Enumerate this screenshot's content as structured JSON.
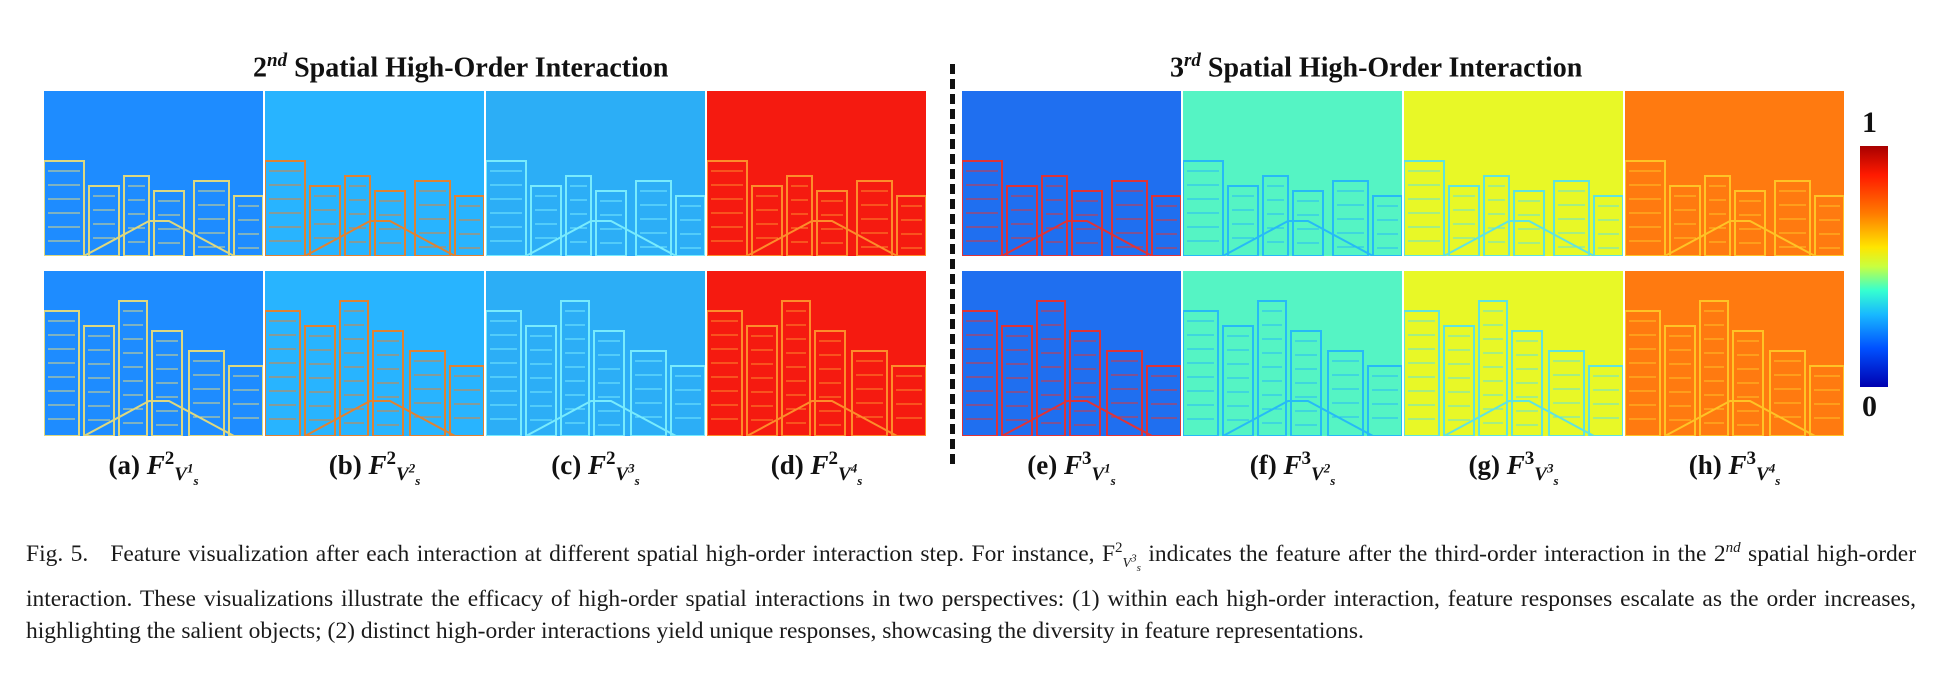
{
  "titles": {
    "left_order": "2",
    "left_sup": "nd",
    "left_text": "Spatial High-Order Interaction",
    "right_order": "3",
    "right_sup": "rd",
    "right_text": "Spatial High-Order Interaction"
  },
  "panels": [
    {
      "label": "(a)",
      "order": "2",
      "idx": "1",
      "tint": "#1e8cff",
      "accent": "#ffe66a"
    },
    {
      "label": "(b)",
      "order": "2",
      "idx": "2",
      "tint": "#28b4ff",
      "accent": "#ff7a10"
    },
    {
      "label": "(c)",
      "order": "2",
      "idx": "3",
      "tint": "#2caef6",
      "accent": "#86f6ff"
    },
    {
      "label": "(d)",
      "order": "2",
      "idx": "4",
      "tint": "#f51a10",
      "accent": "#ffa030"
    },
    {
      "label": "(e)",
      "order": "3",
      "idx": "1",
      "tint": "#1f6ff0",
      "accent": "#ff2a1a"
    },
    {
      "label": "(f)",
      "order": "3",
      "idx": "2",
      "tint": "#55f4c4",
      "accent": "#1eb0ff"
    },
    {
      "label": "(g)",
      "order": "3",
      "idx": "3",
      "tint": "#e8f827",
      "accent": "#4ae0ff"
    },
    {
      "label": "(h)",
      "order": "3",
      "idx": "4",
      "tint": "#ff7a10",
      "accent": "#ffd02a"
    }
  ],
  "caption_symbol": "F",
  "caption_sub": "s",
  "colorbar": {
    "max": "1",
    "min": "0"
  },
  "caption": {
    "fig": "Fig. 5.",
    "part1": "Feature visualization after each interaction at different spatial high-order interaction step. For instance, F",
    "part1_sup": "2",
    "part1_sub": "V",
    "part1_sub_sup": "3",
    "part1_sub_s": "s",
    "part2": "indicates the feature after the third-order interaction in the 2",
    "part2_sup": "nd",
    "part3": "spatial high-order interaction. These visualizations illustrate the efficacy of high-order spatial interactions in two perspectives: (1) within each high-order interaction, feature responses escalate as the order increases, highlighting the salient objects; (2) distinct high-order interactions yield unique responses, showcasing the diversity in feature representations."
  }
}
